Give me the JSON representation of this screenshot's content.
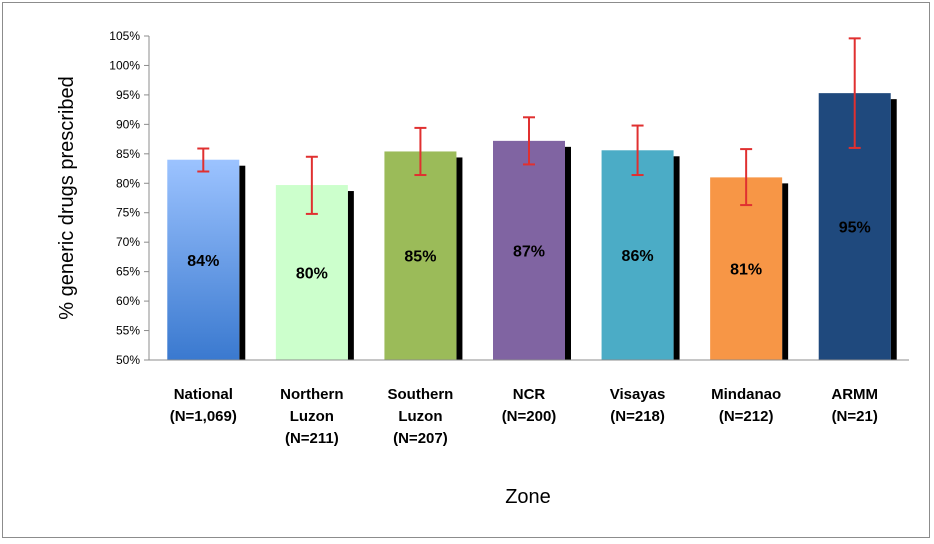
{
  "chart_data": {
    "type": "bar",
    "xlabel": "Zone",
    "ylabel": "% generic drugs prescribed",
    "ylim": [
      50,
      105
    ],
    "yticks": [
      50,
      55,
      60,
      65,
      70,
      75,
      80,
      85,
      90,
      95,
      100,
      105
    ],
    "ytick_labels": [
      "50%",
      "55%",
      "60%",
      "65%",
      "70%",
      "75%",
      "80%",
      "85%",
      "90%",
      "95%",
      "100%",
      "105%"
    ],
    "categories": [
      {
        "lines": [
          "National",
          "(N=1,069)"
        ]
      },
      {
        "lines": [
          "Northern",
          "Luzon",
          "(N=211)"
        ]
      },
      {
        "lines": [
          "Southern",
          "Luzon",
          "(N=207)"
        ]
      },
      {
        "lines": [
          "NCR",
          "(N=200)"
        ]
      },
      {
        "lines": [
          "Visayas",
          "(N=218)"
        ]
      },
      {
        "lines": [
          "Mindanao",
          "(N=212)"
        ]
      },
      {
        "lines": [
          "ARMM",
          "(N=21)"
        ]
      }
    ],
    "values": [
      84,
      79.7,
      85.4,
      87.2,
      85.6,
      81,
      95.3
    ],
    "data_labels": [
      "84%",
      "80%",
      "85%",
      "87%",
      "86%",
      "81%",
      "95%"
    ],
    "error_low": [
      82,
      74.8,
      81.4,
      83.2,
      81.4,
      76.3,
      86
    ],
    "error_high": [
      85.9,
      84.5,
      89.4,
      91.2,
      89.8,
      85.8,
      104.6
    ],
    "bar_colors": [
      {
        "top": "#9cc3ff",
        "bottom": "#3a79cf"
      },
      {
        "top": "#ccffcc",
        "bottom": "#ccffcc"
      },
      {
        "top": "#9bbb59",
        "bottom": "#9bbb59"
      },
      {
        "top": "#8064a2",
        "bottom": "#8064a2"
      },
      {
        "top": "#4bacc6",
        "bottom": "#4bacc6"
      },
      {
        "top": "#f79646",
        "bottom": "#f79646"
      },
      {
        "top": "#1f497d",
        "bottom": "#1f497d"
      }
    ],
    "error_color": "#e03030",
    "shadow_color": "#000000",
    "grid": false,
    "legend": "none"
  }
}
